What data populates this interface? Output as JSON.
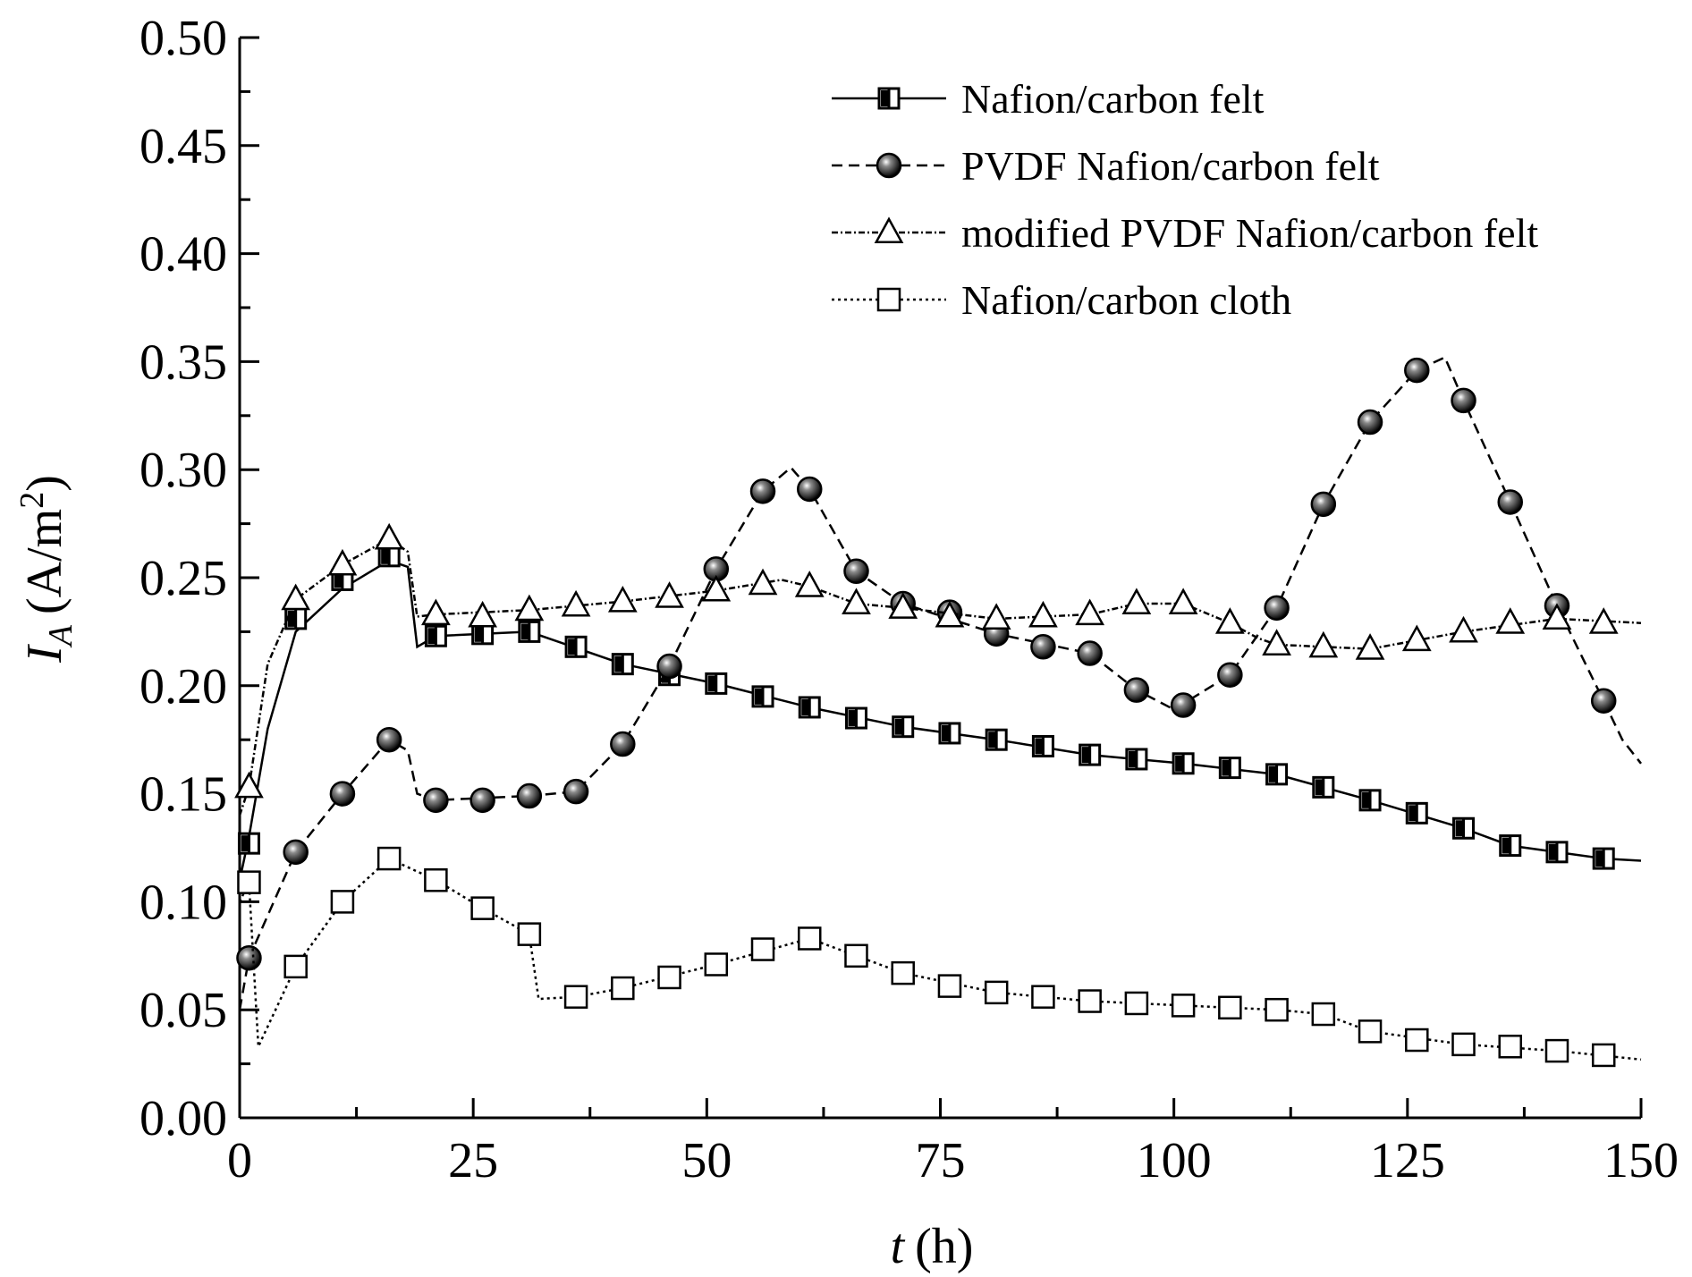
{
  "chart_data": {
    "type": "line",
    "title": "",
    "xlabel": "t",
    "xlabel_unit": "(h)",
    "ylabel_symbol": "I",
    "ylabel_subscript": "A",
    "ylabel_unit_prefix": "(A/m",
    "ylabel_unit_exponent": "2",
    "ylabel_unit_suffix": ")",
    "xlim": [
      0,
      150
    ],
    "ylim": [
      0,
      0.5
    ],
    "x_ticks": [
      0,
      25,
      50,
      75,
      100,
      125,
      150
    ],
    "x_tick_labels": [
      "0",
      "25",
      "50",
      "75",
      "100",
      "125",
      "150"
    ],
    "y_ticks": [
      0.0,
      0.05,
      0.1,
      0.15,
      0.2,
      0.25,
      0.3,
      0.35,
      0.4,
      0.45,
      0.5
    ],
    "y_tick_labels": [
      "0.00",
      "0.05",
      "0.10",
      "0.15",
      "0.20",
      "0.25",
      "0.30",
      "0.35",
      "0.40",
      "0.45",
      "0.50"
    ],
    "grid": false,
    "legend_position": "top-right",
    "series": [
      {
        "name": "Nafion/carbon felt",
        "marker": "half-filled-square",
        "line_style": "solid",
        "markers": [
          [
            1,
            0.127
          ],
          [
            6,
            0.231
          ],
          [
            11,
            0.249
          ],
          [
            16,
            0.26
          ],
          [
            21,
            0.223
          ],
          [
            26,
            0.224
          ],
          [
            31,
            0.225
          ],
          [
            36,
            0.218
          ],
          [
            41,
            0.21
          ],
          [
            46,
            0.205
          ],
          [
            51,
            0.201
          ],
          [
            56,
            0.195
          ],
          [
            61,
            0.19
          ],
          [
            66,
            0.185
          ],
          [
            71,
            0.181
          ],
          [
            76,
            0.178
          ],
          [
            81,
            0.175
          ],
          [
            86,
            0.172
          ],
          [
            91,
            0.168
          ],
          [
            96,
            0.166
          ],
          [
            101,
            0.164
          ],
          [
            106,
            0.162
          ],
          [
            111,
            0.159
          ],
          [
            116,
            0.153
          ],
          [
            121,
            0.147
          ],
          [
            126,
            0.141
          ],
          [
            131,
            0.134
          ],
          [
            136,
            0.126
          ],
          [
            141,
            0.123
          ],
          [
            146,
            0.12
          ]
        ],
        "line": [
          [
            0,
            0.11
          ],
          [
            1,
            0.13
          ],
          [
            3,
            0.18
          ],
          [
            6,
            0.225
          ],
          [
            11,
            0.245
          ],
          [
            16,
            0.258
          ],
          [
            18,
            0.255
          ],
          [
            19,
            0.218
          ],
          [
            21,
            0.223
          ],
          [
            31,
            0.225
          ],
          [
            41,
            0.21
          ],
          [
            51,
            0.201
          ],
          [
            61,
            0.19
          ],
          [
            71,
            0.181
          ],
          [
            81,
            0.175
          ],
          [
            91,
            0.168
          ],
          [
            101,
            0.164
          ],
          [
            111,
            0.159
          ],
          [
            121,
            0.147
          ],
          [
            131,
            0.134
          ],
          [
            136,
            0.126
          ],
          [
            146,
            0.12
          ],
          [
            150,
            0.119
          ]
        ]
      },
      {
        "name": "PVDF Nafion/carbon felt",
        "marker": "filled-circle",
        "line_style": "dashed",
        "markers": [
          [
            1,
            0.074
          ],
          [
            6,
            0.123
          ],
          [
            11,
            0.15
          ],
          [
            16,
            0.175
          ],
          [
            21,
            0.147
          ],
          [
            26,
            0.147
          ],
          [
            31,
            0.149
          ],
          [
            36,
            0.151
          ],
          [
            41,
            0.173
          ],
          [
            46,
            0.209
          ],
          [
            51,
            0.254
          ],
          [
            56,
            0.29
          ],
          [
            61,
            0.291
          ],
          [
            66,
            0.253
          ],
          [
            71,
            0.238
          ],
          [
            76,
            0.234
          ],
          [
            81,
            0.224
          ],
          [
            86,
            0.218
          ],
          [
            91,
            0.215
          ],
          [
            96,
            0.198
          ],
          [
            101,
            0.191
          ],
          [
            106,
            0.205
          ],
          [
            111,
            0.236
          ],
          [
            116,
            0.284
          ],
          [
            121,
            0.322
          ],
          [
            126,
            0.346
          ],
          [
            131,
            0.332
          ],
          [
            136,
            0.285
          ],
          [
            141,
            0.237
          ],
          [
            146,
            0.193
          ]
        ],
        "line": [
          [
            0,
            0.05
          ],
          [
            1,
            0.074
          ],
          [
            6,
            0.123
          ],
          [
            11,
            0.15
          ],
          [
            16,
            0.175
          ],
          [
            18,
            0.17
          ],
          [
            19,
            0.15
          ],
          [
            21,
            0.147
          ],
          [
            31,
            0.149
          ],
          [
            36,
            0.151
          ],
          [
            41,
            0.173
          ],
          [
            46,
            0.209
          ],
          [
            51,
            0.254
          ],
          [
            56,
            0.29
          ],
          [
            59,
            0.301
          ],
          [
            61,
            0.291
          ],
          [
            66,
            0.253
          ],
          [
            71,
            0.238
          ],
          [
            81,
            0.224
          ],
          [
            91,
            0.215
          ],
          [
            96,
            0.198
          ],
          [
            100,
            0.189
          ],
          [
            106,
            0.205
          ],
          [
            111,
            0.236
          ],
          [
            116,
            0.284
          ],
          [
            121,
            0.322
          ],
          [
            126,
            0.346
          ],
          [
            129,
            0.352
          ],
          [
            131,
            0.332
          ],
          [
            136,
            0.285
          ],
          [
            141,
            0.237
          ],
          [
            146,
            0.193
          ],
          [
            148,
            0.175
          ],
          [
            150,
            0.164
          ]
        ]
      },
      {
        "name": "modified PVDF Nafion/carbon felt",
        "marker": "open-triangle",
        "line_style": "dash-dot",
        "markers": [
          [
            1,
            0.153
          ],
          [
            6,
            0.24
          ],
          [
            11,
            0.256
          ],
          [
            16,
            0.268
          ],
          [
            21,
            0.233
          ],
          [
            26,
            0.232
          ],
          [
            31,
            0.235
          ],
          [
            36,
            0.237
          ],
          [
            41,
            0.239
          ],
          [
            46,
            0.241
          ],
          [
            51,
            0.244
          ],
          [
            56,
            0.247
          ],
          [
            61,
            0.246
          ],
          [
            66,
            0.238
          ],
          [
            71,
            0.236
          ],
          [
            76,
            0.232
          ],
          [
            81,
            0.231
          ],
          [
            86,
            0.232
          ],
          [
            91,
            0.233
          ],
          [
            96,
            0.238
          ],
          [
            101,
            0.238
          ],
          [
            106,
            0.229
          ],
          [
            111,
            0.219
          ],
          [
            116,
            0.218
          ],
          [
            121,
            0.217
          ],
          [
            126,
            0.221
          ],
          [
            131,
            0.225
          ],
          [
            136,
            0.229
          ],
          [
            141,
            0.231
          ],
          [
            146,
            0.229
          ]
        ],
        "line": [
          [
            0,
            0.14
          ],
          [
            1,
            0.153
          ],
          [
            3,
            0.21
          ],
          [
            6,
            0.24
          ],
          [
            11,
            0.256
          ],
          [
            16,
            0.268
          ],
          [
            18,
            0.262
          ],
          [
            19,
            0.232
          ],
          [
            21,
            0.233
          ],
          [
            31,
            0.235
          ],
          [
            41,
            0.239
          ],
          [
            51,
            0.244
          ],
          [
            58,
            0.249
          ],
          [
            61,
            0.246
          ],
          [
            66,
            0.238
          ],
          [
            71,
            0.236
          ],
          [
            81,
            0.231
          ],
          [
            91,
            0.233
          ],
          [
            96,
            0.238
          ],
          [
            101,
            0.238
          ],
          [
            106,
            0.229
          ],
          [
            109,
            0.222
          ],
          [
            111,
            0.219
          ],
          [
            121,
            0.217
          ],
          [
            131,
            0.225
          ],
          [
            141,
            0.231
          ],
          [
            150,
            0.229
          ]
        ]
      },
      {
        "name": "Nafion/carbon cloth",
        "marker": "open-square",
        "line_style": "dotted",
        "markers": [
          [
            1,
            0.109
          ],
          [
            6,
            0.07
          ],
          [
            11,
            0.1
          ],
          [
            16,
            0.12
          ],
          [
            21,
            0.11
          ],
          [
            26,
            0.097
          ],
          [
            31,
            0.085
          ],
          [
            36,
            0.056
          ],
          [
            41,
            0.06
          ],
          [
            46,
            0.065
          ],
          [
            51,
            0.071
          ],
          [
            56,
            0.078
          ],
          [
            61,
            0.083
          ],
          [
            66,
            0.075
          ],
          [
            71,
            0.067
          ],
          [
            76,
            0.061
          ],
          [
            81,
            0.058
          ],
          [
            86,
            0.056
          ],
          [
            91,
            0.054
          ],
          [
            96,
            0.053
          ],
          [
            101,
            0.052
          ],
          [
            106,
            0.051
          ],
          [
            111,
            0.05
          ],
          [
            116,
            0.048
          ],
          [
            121,
            0.04
          ],
          [
            126,
            0.036
          ],
          [
            131,
            0.034
          ],
          [
            136,
            0.033
          ],
          [
            141,
            0.031
          ],
          [
            146,
            0.029
          ]
        ],
        "line": [
          [
            0,
            0.1
          ],
          [
            1,
            0.109
          ],
          [
            2,
            0.033
          ],
          [
            6,
            0.07
          ],
          [
            11,
            0.1
          ],
          [
            16,
            0.12
          ],
          [
            21,
            0.11
          ],
          [
            26,
            0.097
          ],
          [
            31,
            0.085
          ],
          [
            32,
            0.055
          ],
          [
            36,
            0.056
          ],
          [
            41,
            0.06
          ],
          [
            51,
            0.071
          ],
          [
            61,
            0.083
          ],
          [
            71,
            0.067
          ],
          [
            81,
            0.058
          ],
          [
            91,
            0.054
          ],
          [
            101,
            0.052
          ],
          [
            111,
            0.05
          ],
          [
            116,
            0.048
          ],
          [
            121,
            0.04
          ],
          [
            131,
            0.034
          ],
          [
            141,
            0.031
          ],
          [
            150,
            0.027
          ]
        ]
      }
    ]
  }
}
